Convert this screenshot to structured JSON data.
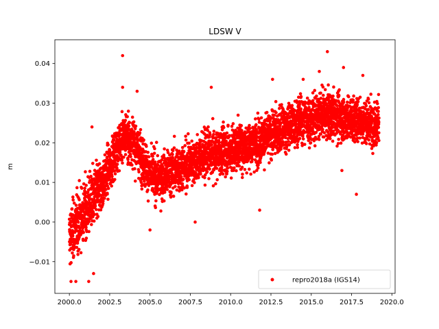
{
  "chart_data": {
    "type": "scatter",
    "title": "LDSW V",
    "xlabel": "",
    "ylabel": "m",
    "xlim": [
      1999.1,
      2020.2
    ],
    "ylim": [
      -0.018,
      0.046
    ],
    "xticks": [
      2000.0,
      2002.5,
      2005.0,
      2007.5,
      2010.0,
      2012.5,
      2015.0,
      2017.5,
      2020.0
    ],
    "xtick_labels": [
      "2000.0",
      "2002.5",
      "2005.0",
      "2007.5",
      "2010.0",
      "2012.5",
      "2015.0",
      "2017.5",
      "2020.0"
    ],
    "yticks": [
      -0.01,
      0.0,
      0.01,
      0.02,
      0.03,
      0.04
    ],
    "ytick_labels": [
      "−0.01",
      "0.00",
      "0.01",
      "0.02",
      "0.03",
      "0.04"
    ],
    "grid": false,
    "legend_position": "lower-right",
    "series": [
      {
        "name": "repro2018a (IGS14)",
        "color": "#ff0000",
        "marker": "circle",
        "date_range": [
          2000.0,
          2019.2
        ],
        "trend": [
          [
            2000.0,
            -0.004
          ],
          [
            2000.5,
            0.0
          ],
          [
            2001.0,
            0.003
          ],
          [
            2001.5,
            0.006
          ],
          [
            2002.0,
            0.009
          ],
          [
            2002.5,
            0.014
          ],
          [
            2003.0,
            0.019
          ],
          [
            2003.5,
            0.022
          ],
          [
            2004.0,
            0.02
          ],
          [
            2004.5,
            0.016
          ],
          [
            2005.0,
            0.012
          ],
          [
            2005.5,
            0.011
          ],
          [
            2006.0,
            0.012
          ],
          [
            2006.5,
            0.013
          ],
          [
            2007.0,
            0.014
          ],
          [
            2007.5,
            0.015
          ],
          [
            2008.0,
            0.016
          ],
          [
            2008.5,
            0.017
          ],
          [
            2009.0,
            0.017
          ],
          [
            2009.5,
            0.018
          ],
          [
            2010.0,
            0.018
          ],
          [
            2010.5,
            0.019
          ],
          [
            2011.0,
            0.019
          ],
          [
            2011.5,
            0.02
          ],
          [
            2012.0,
            0.021
          ],
          [
            2012.5,
            0.022
          ],
          [
            2013.0,
            0.023
          ],
          [
            2013.5,
            0.024
          ],
          [
            2014.0,
            0.025
          ],
          [
            2014.5,
            0.026
          ],
          [
            2015.0,
            0.026
          ],
          [
            2015.5,
            0.027
          ],
          [
            2016.0,
            0.027
          ],
          [
            2016.5,
            0.027
          ],
          [
            2017.0,
            0.026
          ],
          [
            2017.5,
            0.026
          ],
          [
            2018.0,
            0.026
          ],
          [
            2018.5,
            0.025
          ],
          [
            2019.2,
            0.025
          ]
        ],
        "scatter_std": 0.004,
        "outliers": [
          [
            2003.3,
            0.042
          ],
          [
            2016.0,
            0.043
          ],
          [
            2003.3,
            0.034
          ],
          [
            2008.8,
            0.034
          ],
          [
            2001.4,
            0.024
          ],
          [
            2000.1,
            -0.015
          ],
          [
            2000.4,
            -0.015
          ],
          [
            2001.2,
            -0.015
          ],
          [
            2001.5,
            -0.013
          ],
          [
            2005.0,
            -0.002
          ],
          [
            2007.8,
            0.0
          ],
          [
            2011.8,
            0.003
          ],
          [
            2017.8,
            0.007
          ],
          [
            2014.5,
            0.036
          ],
          [
            2017.0,
            0.039
          ],
          [
            2018.2,
            0.037
          ],
          [
            2012.6,
            0.036
          ],
          [
            2015.5,
            0.038
          ],
          [
            2004.2,
            0.033
          ],
          [
            2016.9,
            0.013
          ]
        ]
      }
    ]
  }
}
